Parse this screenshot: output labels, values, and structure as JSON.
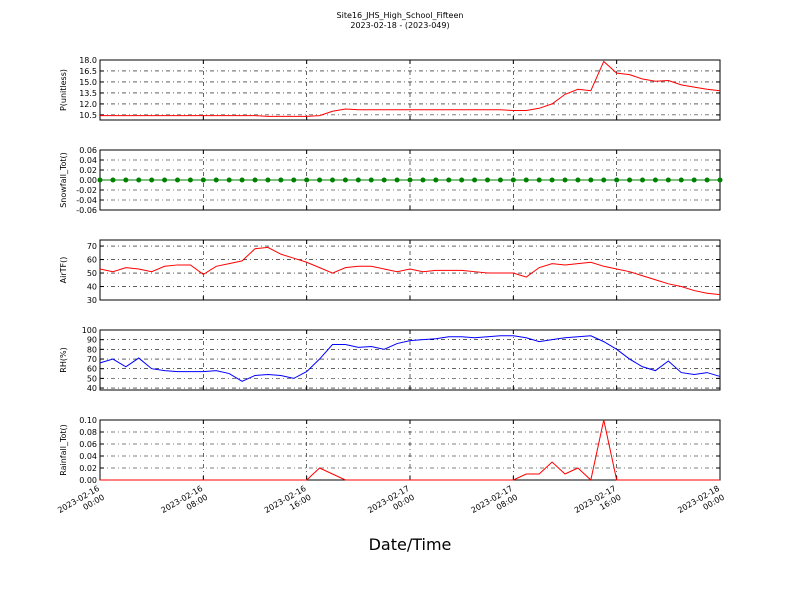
{
  "title": "Site16_JHS_High_School_Fifteen",
  "subtitle": "2023-02-18 - (2023-049)",
  "xlabel": "Date/Time",
  "x": [
    "2023-02-16 00:00",
    "2023-02-16 01:00",
    "2023-02-16 02:00",
    "2023-02-16 03:00",
    "2023-02-16 04:00",
    "2023-02-16 05:00",
    "2023-02-16 06:00",
    "2023-02-16 07:00",
    "2023-02-16 08:00",
    "2023-02-16 09:00",
    "2023-02-16 10:00",
    "2023-02-16 11:00",
    "2023-02-16 12:00",
    "2023-02-16 13:00",
    "2023-02-16 14:00",
    "2023-02-16 15:00",
    "2023-02-16 16:00",
    "2023-02-16 17:00",
    "2023-02-16 18:00",
    "2023-02-16 19:00",
    "2023-02-16 20:00",
    "2023-02-16 21:00",
    "2023-02-16 22:00",
    "2023-02-16 23:00",
    "2023-02-17 00:00",
    "2023-02-17 01:00",
    "2023-02-17 02:00",
    "2023-02-17 03:00",
    "2023-02-17 04:00",
    "2023-02-17 05:00",
    "2023-02-17 06:00",
    "2023-02-17 07:00",
    "2023-02-17 08:00",
    "2023-02-17 09:00",
    "2023-02-17 10:00",
    "2023-02-17 11:00",
    "2023-02-17 12:00",
    "2023-02-17 13:00",
    "2023-02-17 14:00",
    "2023-02-17 15:00",
    "2023-02-17 16:00",
    "2023-02-17 17:00",
    "2023-02-17 18:00",
    "2023-02-17 19:00",
    "2023-02-17 20:00",
    "2023-02-17 21:00",
    "2023-02-17 22:00",
    "2023-02-17 23:00",
    "2023-02-18 00:00"
  ],
  "xlim": [
    "2023-02-16 00:00",
    "2023-02-18 00:00"
  ],
  "xticks": [
    "2023-02-16 00:00",
    "2023-02-16 08:00",
    "2023-02-16 16:00",
    "2023-02-17 00:00",
    "2023-02-17 08:00",
    "2023-02-17 16:00",
    "2023-02-18 00:00"
  ],
  "chart_data": [
    {
      "type": "line",
      "ylabel": "P(unitless)",
      "ylim": [
        9.8,
        18
      ],
      "grid": true,
      "yticks": [
        10.5,
        {
          "value": 12,
          "label": "12.0"
        },
        13.5,
        {
          "value": 15,
          "label": "15.0"
        },
        16.5,
        {
          "value": 18,
          "label": "18.0"
        }
      ],
      "series": [
        {
          "name": "P",
          "color": "#ff0000",
          "values": [
            10.4,
            10.4,
            10.4,
            10.4,
            10.4,
            10.4,
            10.4,
            10.4,
            10.4,
            10.4,
            10.4,
            10.4,
            10.4,
            10.3,
            10.3,
            10.3,
            10.3,
            10.4,
            11.0,
            11.3,
            11.2,
            11.2,
            11.2,
            11.2,
            11.2,
            11.2,
            11.2,
            11.2,
            11.2,
            11.2,
            11.2,
            11.2,
            11.1,
            11.1,
            11.4,
            12.0,
            13.3,
            14.0,
            13.8,
            17.8,
            16.2,
            16.0,
            15.4,
            15.1,
            15.2,
            14.6,
            14.3,
            14.0,
            13.8
          ]
        }
      ]
    },
    {
      "type": "line",
      "ylabel": "Snowfall_Tot()",
      "ylim": [
        -0.06,
        0.06
      ],
      "grid": true,
      "markers": true,
      "yticks": [
        -0.06,
        -0.04,
        -0.02,
        {
          "value": 0,
          "label": "0.00"
        },
        0.02,
        0.04,
        0.06
      ],
      "series": [
        {
          "name": "Snowfall_Tot",
          "color": "#008000",
          "values": [
            0,
            0,
            0,
            0,
            0,
            0,
            0,
            0,
            0,
            0,
            0,
            0,
            0,
            0,
            0,
            0,
            0,
            0,
            0,
            0,
            0,
            0,
            0,
            0,
            0,
            0,
            0,
            0,
            0,
            0,
            0,
            0,
            0,
            0,
            0,
            0,
            0,
            0,
            0,
            0,
            0,
            0,
            0,
            0,
            0,
            0,
            0,
            0,
            0
          ]
        }
      ]
    },
    {
      "type": "line",
      "ylabel": "AirTF()",
      "ylim": [
        30,
        74.5
      ],
      "grid": true,
      "yticks": [
        30,
        40,
        50,
        60,
        70
      ],
      "series": [
        {
          "name": "AirTF",
          "color": "#ff0000",
          "values": [
            53,
            51,
            54,
            53,
            51,
            55,
            56,
            56,
            49,
            55,
            57,
            59,
            68,
            69,
            64,
            61,
            58,
            54,
            50,
            54,
            55,
            55,
            53,
            51,
            53,
            51,
            52,
            52,
            52,
            51,
            50,
            50,
            50,
            47,
            54,
            57,
            56,
            57,
            58,
            55,
            53,
            51,
            48,
            45,
            42,
            40,
            37,
            35,
            34
          ]
        }
      ]
    },
    {
      "type": "line",
      "ylabel": "RH(%)",
      "ylim": [
        38,
        100
      ],
      "grid": true,
      "yticks": [
        40,
        50,
        60,
        70,
        80,
        90,
        100
      ],
      "series": [
        {
          "name": "RH",
          "color": "#0000ff",
          "values": [
            66,
            70,
            62,
            71,
            60,
            58,
            57,
            57,
            57,
            58,
            55,
            47,
            53,
            54,
            53,
            50,
            57,
            70,
            85,
            85,
            82,
            83,
            80,
            86,
            89,
            90,
            91,
            93,
            93,
            92,
            93,
            94,
            94,
            92,
            88,
            90,
            92,
            93,
            94,
            88,
            80,
            70,
            62,
            58,
            68,
            56,
            54,
            56,
            52
          ]
        }
      ]
    },
    {
      "type": "line",
      "ylabel": "Rainfall_Tot()",
      "ylim": [
        0,
        0.1
      ],
      "grid": true,
      "yticks": [
        {
          "value": 0,
          "label": "0.00"
        },
        0.02,
        0.04,
        0.06,
        0.08,
        {
          "value": 0.1,
          "label": "0.10"
        }
      ],
      "series": [
        {
          "name": "Rainfall_Tot",
          "color": "#ff0000",
          "values": [
            0,
            0,
            0,
            0,
            0,
            0,
            0,
            0,
            0,
            0,
            0,
            0,
            0,
            0,
            0,
            0,
            0,
            0.02,
            0.01,
            0,
            0,
            0,
            0,
            0,
            0,
            0,
            0,
            0,
            0,
            0,
            0,
            0,
            0,
            0.01,
            0.01,
            0.03,
            0.01,
            0.02,
            0,
            0.1,
            0,
            0,
            0,
            0,
            0,
            0,
            0,
            0,
            0
          ]
        }
      ]
    }
  ]
}
